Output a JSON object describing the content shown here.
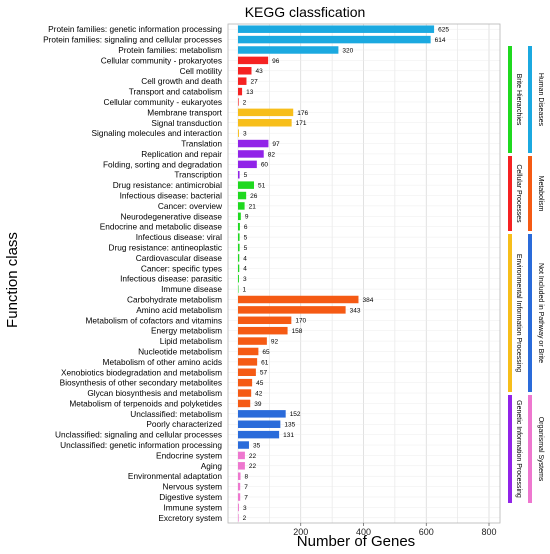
{
  "chart_data": {
    "type": "bar",
    "orientation": "horizontal",
    "title": "KEGG classfication",
    "xlabel": "Number of Genes",
    "ylabel": "Function class",
    "xlim": [
      0,
      850
    ],
    "xticks": [
      200,
      400,
      600,
      800
    ],
    "grid": true,
    "colors": {
      "Human Diseases": "#1BA9E0",
      "Cellular Processes": "#F52222",
      "Environmental Information Processing": "#F7BE1A",
      "Genetic Information Processing": "#9123E8",
      "Brite Hierarchies": "#1FD91F",
      "Metabolism": "#F55A14",
      "Not Included in Pathway or Brite": "#2A6BDA",
      "Organismal Systems": "#EE77CF"
    },
    "categories": [
      {
        "label": "Protein families: genetic information processing",
        "value": 625,
        "group": "Human Diseases"
      },
      {
        "label": "Protein families: signaling and cellular processes",
        "value": 614,
        "group": "Human Diseases"
      },
      {
        "label": "Protein families: metabolism",
        "value": 320,
        "group": "Human Diseases"
      },
      {
        "label": "Cellular community - prokaryotes",
        "value": 96,
        "group": "Cellular Processes"
      },
      {
        "label": "Cell motility",
        "value": 43,
        "group": "Cellular Processes"
      },
      {
        "label": "Cell growth and death",
        "value": 27,
        "group": "Cellular Processes"
      },
      {
        "label": "Transport and catabolism",
        "value": 13,
        "group": "Cellular Processes"
      },
      {
        "label": "Cellular community - eukaryotes",
        "value": 2,
        "group": "Cellular Processes"
      },
      {
        "label": "Membrane transport",
        "value": 176,
        "group": "Environmental Information Processing"
      },
      {
        "label": "Signal transduction",
        "value": 171,
        "group": "Environmental Information Processing"
      },
      {
        "label": "Signaling molecules and interaction",
        "value": 3,
        "group": "Environmental Information Processing"
      },
      {
        "label": "Translation",
        "value": 97,
        "group": "Genetic Information Processing"
      },
      {
        "label": "Replication and repair",
        "value": 82,
        "group": "Genetic Information Processing"
      },
      {
        "label": "Folding, sorting and degradation",
        "value": 60,
        "group": "Genetic Information Processing"
      },
      {
        "label": "Transcription",
        "value": 5,
        "group": "Genetic Information Processing"
      },
      {
        "label": "Drug resistance: antimicrobial",
        "value": 51,
        "group": "Brite Hierarchies"
      },
      {
        "label": "Infectious disease: bacterial",
        "value": 26,
        "group": "Brite Hierarchies"
      },
      {
        "label": "Cancer: overview",
        "value": 21,
        "group": "Brite Hierarchies"
      },
      {
        "label": "Neurodegenerative disease",
        "value": 9,
        "group": "Brite Hierarchies"
      },
      {
        "label": "Endocrine and metabolic disease",
        "value": 6,
        "group": "Brite Hierarchies"
      },
      {
        "label": "Infectious disease: viral",
        "value": 5,
        "group": "Brite Hierarchies"
      },
      {
        "label": "Drug resistance: antineoplastic",
        "value": 5,
        "group": "Brite Hierarchies"
      },
      {
        "label": "Cardiovascular disease",
        "value": 4,
        "group": "Brite Hierarchies"
      },
      {
        "label": "Cancer: specific types",
        "value": 4,
        "group": "Brite Hierarchies"
      },
      {
        "label": "Infectious disease: parasitic",
        "value": 3,
        "group": "Brite Hierarchies"
      },
      {
        "label": "Immune disease",
        "value": 1,
        "group": "Brite Hierarchies"
      },
      {
        "label": "Carbohydrate metabolism",
        "value": 384,
        "group": "Metabolism"
      },
      {
        "label": "Amino acid metabolism",
        "value": 343,
        "group": "Metabolism"
      },
      {
        "label": "Metabolism of cofactors and vitamins",
        "value": 170,
        "group": "Metabolism"
      },
      {
        "label": "Energy metabolism",
        "value": 158,
        "group": "Metabolism"
      },
      {
        "label": "Lipid metabolism",
        "value": 92,
        "group": "Metabolism"
      },
      {
        "label": "Nucleotide metabolism",
        "value": 65,
        "group": "Metabolism"
      },
      {
        "label": "Metabolism of other amino acids",
        "value": 61,
        "group": "Metabolism"
      },
      {
        "label": "Xenobiotics biodegradation and metabolism",
        "value": 57,
        "group": "Metabolism"
      },
      {
        "label": "Biosynthesis of other secondary metabolites",
        "value": 45,
        "group": "Metabolism"
      },
      {
        "label": "Glycan biosynthesis and metabolism",
        "value": 42,
        "group": "Metabolism"
      },
      {
        "label": "Metabolism of terpenoids and polyketides",
        "value": 39,
        "group": "Metabolism"
      },
      {
        "label": "Unclassified: metabolism",
        "value": 152,
        "group": "Not Included in Pathway or Brite"
      },
      {
        "label": "Poorly characterized",
        "value": 135,
        "group": "Not Included in Pathway or Brite"
      },
      {
        "label": "Unclassified: signaling and cellular processes",
        "value": 131,
        "group": "Not Included in Pathway or Brite"
      },
      {
        "label": "Unclassified: genetic information processing",
        "value": 35,
        "group": "Not Included in Pathway or Brite"
      },
      {
        "label": "Endocrine system",
        "value": 22,
        "group": "Organismal Systems"
      },
      {
        "label": "Aging",
        "value": 22,
        "group": "Organismal Systems"
      },
      {
        "label": "Environmental adaptation",
        "value": 8,
        "group": "Organismal Systems"
      },
      {
        "label": "Nervous system",
        "value": 7,
        "group": "Organismal Systems"
      },
      {
        "label": "Digestive system",
        "value": 7,
        "group": "Organismal Systems"
      },
      {
        "label": "Immune system",
        "value": 3,
        "group": "Organismal Systems"
      },
      {
        "label": "Excretory system",
        "value": 2,
        "group": "Organismal Systems"
      }
    ],
    "legend": {
      "placement": "right",
      "inner_column": [
        "Brite Hierarchies",
        "Cellular Processes",
        "Environmental Information Processing",
        "Genetic Information Processing"
      ],
      "outer_column": [
        "Human Diseases",
        "Metabolism",
        "Not Included in Pathway or Brite",
        "Organismal Systems"
      ]
    }
  }
}
